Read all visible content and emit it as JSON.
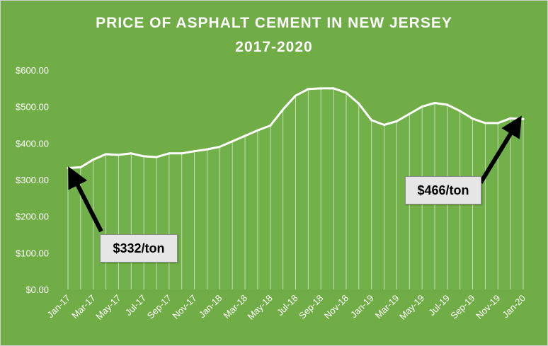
{
  "chart_data": {
    "type": "area",
    "title": "PRICE OF ASPHALT CEMENT IN NEW JERSEY",
    "subtitle": "2017-2020",
    "xlabel": "",
    "ylabel": "",
    "ylim": [
      0,
      600
    ],
    "y_ticks": [
      "$0.00",
      "$100.00",
      "$200.00",
      "$300.00",
      "$400.00",
      "$500.00",
      "$600.00"
    ],
    "x_tick_labels": [
      "Jan-17",
      "Mar-17",
      "May-17",
      "Jul-17",
      "Sep-17",
      "Nov-17",
      "Jan-18",
      "Mar-18",
      "May-18",
      "Jul-18",
      "Sep-18",
      "Nov-18",
      "Jan-19",
      "Mar-19",
      "May-19",
      "Jul-19",
      "Sep-19",
      "Nov-19",
      "Jan-20"
    ],
    "x": [
      "Jan-17",
      "Feb-17",
      "Mar-17",
      "Apr-17",
      "May-17",
      "Jun-17",
      "Jul-17",
      "Aug-17",
      "Sep-17",
      "Oct-17",
      "Nov-17",
      "Dec-17",
      "Jan-18",
      "Feb-18",
      "Mar-18",
      "Apr-18",
      "May-18",
      "Jun-18",
      "Jul-18",
      "Aug-18",
      "Sep-18",
      "Oct-18",
      "Nov-18",
      "Dec-18",
      "Jan-19",
      "Feb-19",
      "Mar-19",
      "Apr-19",
      "May-19",
      "Jun-19",
      "Jul-19",
      "Aug-19",
      "Sep-19",
      "Oct-19",
      "Nov-19",
      "Dec-19",
      "Jan-20"
    ],
    "values": [
      332,
      334,
      355,
      370,
      368,
      372,
      364,
      362,
      372,
      372,
      378,
      383,
      390,
      405,
      420,
      435,
      448,
      492,
      530,
      548,
      550,
      550,
      538,
      508,
      463,
      450,
      460,
      480,
      500,
      510,
      505,
      488,
      467,
      455,
      455,
      468,
      466
    ],
    "grid": false,
    "legend": "none",
    "colors": {
      "background": "#70ad47",
      "line": "#ffffff",
      "text": "#ffffff",
      "callout_bg": "#e7e6e6",
      "arrow": "#000000"
    },
    "annotations": [
      {
        "text": "$332/ton",
        "x": "Jan-17",
        "value": 332
      },
      {
        "text": "$466/ton",
        "x": "Jan-20",
        "value": 466
      }
    ]
  }
}
